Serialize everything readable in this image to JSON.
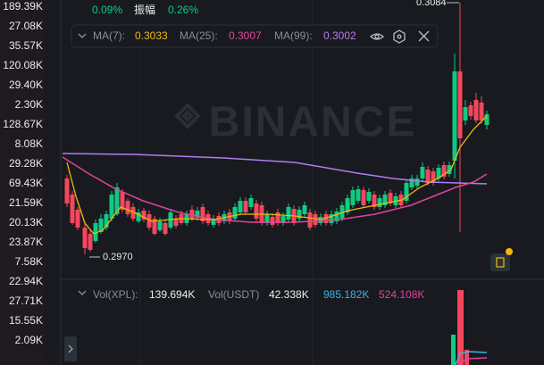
{
  "side_list": [
    "189.39K",
    "27.08K",
    "35.57K",
    "120.08K",
    "29.40K",
    "2.30K",
    "128.67K",
    "8.08K",
    "29.28K",
    "69.43K",
    "21.59K",
    "20.13K",
    "23.87K",
    "7.58K",
    "22.94K",
    "27.71K",
    "15.55K",
    "2.09K"
  ],
  "header": {
    "change": "0.09%",
    "amplitude_label": "振幅",
    "amplitude": "0.26%"
  },
  "ma_legend": {
    "ma7_label": "MA(7):",
    "ma7": "0.3033",
    "ma25_label": "MA(25):",
    "ma25": "0.3007",
    "ma99_label": "MA(99):",
    "ma99": "0.3002"
  },
  "price_marks": {
    "high": "0.3084",
    "low": "0.2970"
  },
  "watermark": "BINANCE",
  "volume_legend": {
    "vol_label": "Vol(XPL):",
    "vol": "139.694K",
    "usdt_label": "Vol(USDT)",
    "usdt": "42.338K",
    "ma1": "985.182K",
    "ma2": "524.108K"
  }
}
